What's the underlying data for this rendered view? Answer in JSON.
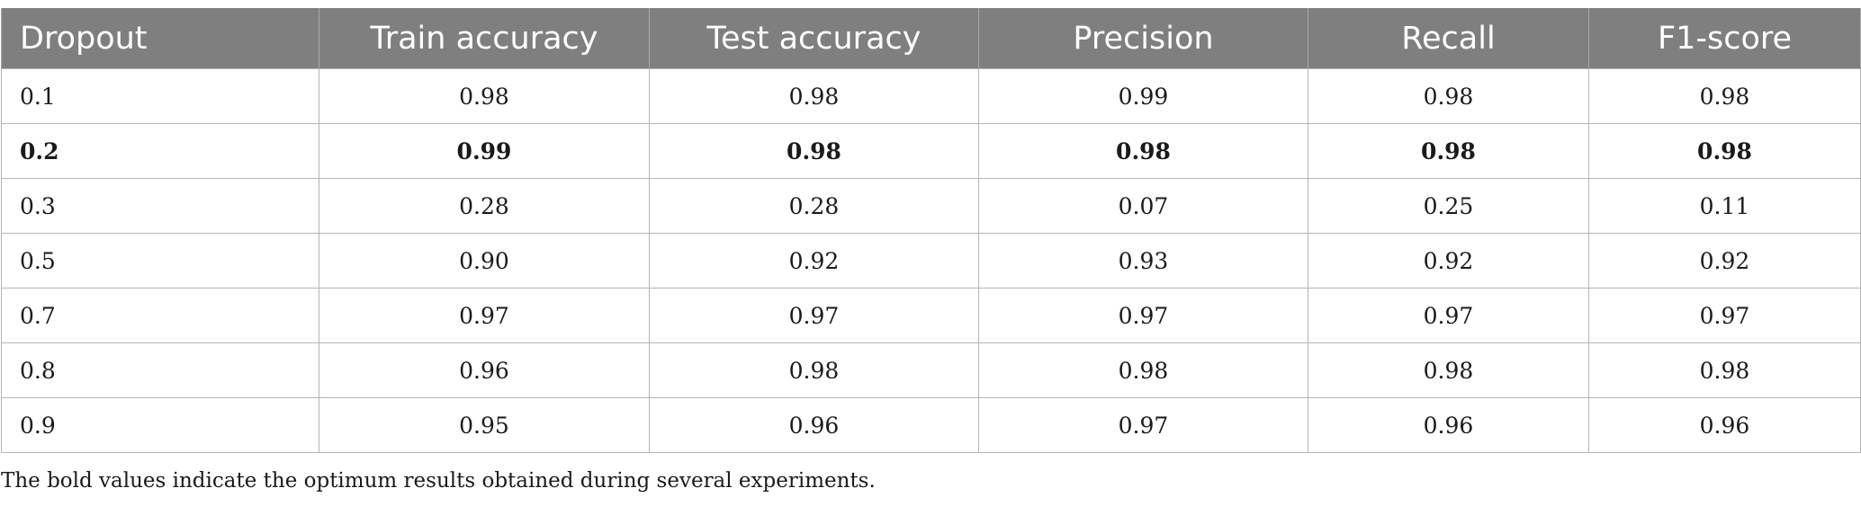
{
  "table": {
    "columns": [
      "Dropout",
      "Train accuracy",
      "Test accuracy",
      "Precision",
      "Recall",
      "F1-score"
    ],
    "rows": [
      {
        "cells": [
          "0.1",
          "0.98",
          "0.98",
          "0.99",
          "0.98",
          "0.98"
        ],
        "bold": false
      },
      {
        "cells": [
          "0.2",
          "0.99",
          "0.98",
          "0.98",
          "0.98",
          "0.98"
        ],
        "bold": true
      },
      {
        "cells": [
          "0.3",
          "0.28",
          "0.28",
          "0.07",
          "0.25",
          "0.11"
        ],
        "bold": false
      },
      {
        "cells": [
          "0.5",
          "0.90",
          "0.92",
          "0.93",
          "0.92",
          "0.92"
        ],
        "bold": false
      },
      {
        "cells": [
          "0.7",
          "0.97",
          "0.97",
          "0.97",
          "0.97",
          "0.97"
        ],
        "bold": false
      },
      {
        "cells": [
          "0.8",
          "0.96",
          "0.98",
          "0.98",
          "0.98",
          "0.98"
        ],
        "bold": false
      },
      {
        "cells": [
          "0.9",
          "0.95",
          "0.96",
          "0.97",
          "0.96",
          "0.96"
        ],
        "bold": false
      }
    ]
  },
  "footnote": "The bold values indicate the optimum results obtained during several experiments.",
  "colors": {
    "header_bg": "#7f7f7f",
    "header_text": "#ffffff",
    "grid": "#b5b5b5"
  }
}
